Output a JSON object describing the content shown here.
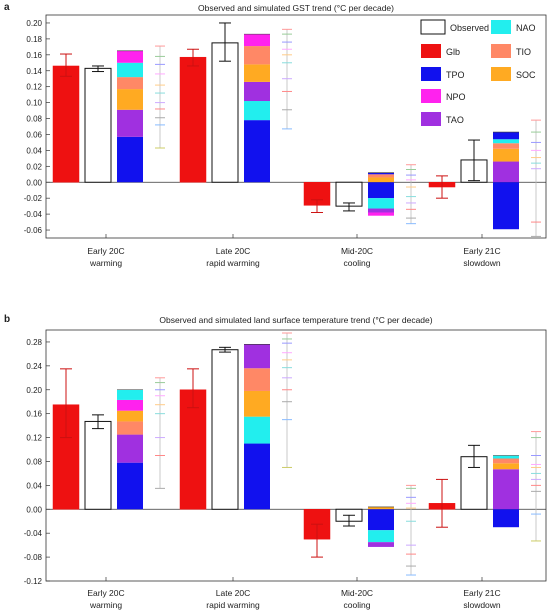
{
  "panels": [
    {
      "label": "a",
      "title": "Observed and simulated GST trend (°C per decade)",
      "chart_data": {
        "type": "bar",
        "categories": [
          [
            "Early 20C",
            "warming"
          ],
          [
            "Late 20C",
            "rapid warming"
          ],
          [
            "Mid-20C",
            "cooling"
          ],
          [
            "Early 21C",
            "slowdown"
          ]
        ],
        "ylim": [
          -0.07,
          0.21
        ],
        "yticks": [
          -0.06,
          -0.04,
          -0.02,
          0.0,
          0.02,
          0.04,
          0.06,
          0.08,
          0.1,
          0.12,
          0.14,
          0.16,
          0.18,
          0.2
        ],
        "glb": {
          "values": [
            0.146,
            0.157,
            -0.029,
            -0.006
          ],
          "err_low": [
            0.133,
            0.146,
            -0.038,
            -0.02
          ],
          "err_high": [
            0.161,
            0.167,
            -0.022,
            0.008
          ]
        },
        "observed": {
          "values": [
            0.143,
            0.175,
            -0.03,
            0.028
          ],
          "err_low": [
            0.139,
            0.152,
            -0.036,
            0.002
          ],
          "err_high": [
            0.146,
            0.2,
            -0.026,
            0.053
          ]
        },
        "stacks": [
          {
            "positive": [
              [
                "TPO",
                0.057
              ],
              [
                "TAO",
                0.034
              ],
              [
                "SOC",
                0.026
              ],
              [
                "TIO",
                0.015
              ],
              [
                "NAO",
                0.018
              ],
              [
                "NPO",
                0.015
              ]
            ],
            "negative": []
          },
          {
            "positive": [
              [
                "TPO",
                0.078
              ],
              [
                "NAO",
                0.024
              ],
              [
                "TAO",
                0.024
              ],
              [
                "SOC",
                0.022
              ],
              [
                "TIO",
                0.023
              ],
              [
                "NPO",
                0.015
              ]
            ],
            "negative": []
          },
          {
            "positive": [
              [
                "SOC",
                0.006
              ],
              [
                "TIO",
                0.004
              ],
              [
                "TPO",
                0.002
              ]
            ],
            "negative": [
              [
                "TPO",
                -0.02
              ],
              [
                "NAO",
                -0.013
              ],
              [
                "TAO",
                -0.005
              ],
              [
                "NPO",
                -0.004
              ]
            ]
          },
          {
            "positive": [
              [
                "TAO",
                0.026
              ],
              [
                "SOC",
                0.016
              ],
              [
                "TIO",
                0.007
              ],
              [
                "NAO",
                0.005
              ],
              [
                "TPO",
                0.009
              ]
            ],
            "negative": [
              [
                "TPO",
                -0.059
              ]
            ]
          }
        ],
        "spread": [
          {
            "low": 0.043,
            "high": 0.171,
            "ticks": [
              0.171,
              0.158,
              0.148,
              0.136,
              0.122,
              0.112,
              0.1,
              0.092,
              0.081,
              0.072,
              0.043
            ]
          },
          {
            "low": 0.067,
            "high": 0.192,
            "ticks": [
              0.192,
              0.186,
              0.176,
              0.167,
              0.16,
              0.15,
              0.13,
              0.114,
              0.091,
              0.067
            ]
          },
          {
            "low": -0.052,
            "high": 0.022,
            "ticks": [
              0.022,
              0.016,
              0.009,
              0.003,
              -0.006,
              -0.018,
              -0.026,
              -0.034,
              -0.045,
              -0.052
            ]
          },
          {
            "low": -0.068,
            "high": 0.078,
            "ticks": [
              0.078,
              0.063,
              0.05,
              0.04,
              0.031,
              0.024,
              0.017,
              -0.05,
              -0.068
            ]
          }
        ]
      }
    },
    {
      "label": "b",
      "title": "Observed and simulated land surface temperature trend (°C per decade)",
      "chart_data": {
        "type": "bar",
        "categories": [
          [
            "Early 20C",
            "warming"
          ],
          [
            "Late 20C",
            "rapid warming"
          ],
          [
            "Mid-20C",
            "cooling"
          ],
          [
            "Early 21C",
            "slowdown"
          ]
        ],
        "ylim": [
          -0.12,
          0.3
        ],
        "yticks": [
          -0.12,
          -0.08,
          -0.04,
          0.0,
          0.04,
          0.08,
          0.12,
          0.16,
          0.2,
          0.24,
          0.28
        ],
        "glb": {
          "values": [
            0.175,
            0.2,
            -0.05,
            0.01
          ],
          "err_low": [
            0.12,
            0.17,
            -0.08,
            -0.03
          ],
          "err_high": [
            0.235,
            0.235,
            -0.025,
            0.05
          ]
        },
        "observed": {
          "values": [
            0.147,
            0.267,
            -0.02,
            0.088
          ],
          "err_low": [
            0.135,
            0.263,
            -0.028,
            0.07
          ],
          "err_high": [
            0.158,
            0.271,
            -0.01,
            0.107
          ]
        },
        "stacks": [
          {
            "positive": [
              [
                "TPO",
                0.078
              ],
              [
                "TAO",
                0.047
              ],
              [
                "TIO",
                0.022
              ],
              [
                "SOC",
                0.018
              ],
              [
                "NPO",
                0.018
              ],
              [
                "NAO",
                0.017
              ]
            ],
            "negative": []
          },
          {
            "positive": [
              [
                "TPO",
                0.11
              ],
              [
                "NAO",
                0.045
              ],
              [
                "SOC",
                0.043
              ],
              [
                "TIO",
                0.038
              ],
              [
                "TAO",
                0.04
              ]
            ],
            "negative": []
          },
          {
            "positive": [
              [
                "SOC",
                0.004
              ]
            ],
            "negative": [
              [
                "TPO",
                -0.035
              ],
              [
                "NAO",
                -0.02
              ],
              [
                "TAO",
                -0.008
              ]
            ]
          },
          {
            "positive": [
              [
                "TAO",
                0.067
              ],
              [
                "SOC",
                0.01
              ],
              [
                "TIO",
                0.008
              ],
              [
                "NAO",
                0.005
              ]
            ],
            "negative": [
              [
                "TPO",
                -0.03
              ]
            ]
          }
        ],
        "spread": [
          {
            "low": 0.035,
            "high": 0.22,
            "ticks": [
              0.22,
              0.212,
              0.2,
              0.19,
              0.175,
              0.16,
              0.12,
              0.09,
              0.035
            ]
          },
          {
            "low": 0.07,
            "high": 0.295,
            "ticks": [
              0.295,
              0.285,
              0.278,
              0.262,
              0.25,
              0.237,
              0.22,
              0.2,
              0.18,
              0.15,
              0.07
            ]
          },
          {
            "low": -0.11,
            "high": 0.04,
            "ticks": [
              0.04,
              0.035,
              0.02,
              0.01,
              0.002,
              -0.02,
              -0.06,
              -0.075,
              -0.095,
              -0.11
            ]
          },
          {
            "low": -0.053,
            "high": 0.13,
            "ticks": [
              0.13,
              0.12,
              0.09,
              0.075,
              0.07,
              0.06,
              0.05,
              0.04,
              0.03,
              -0.008,
              -0.053
            ]
          }
        ]
      }
    }
  ],
  "legend": [
    {
      "key": "Observed",
      "label": "Observed",
      "color": "#ffffff"
    },
    {
      "key": "Glb",
      "label": "Glb",
      "color": "#ee1111"
    },
    {
      "key": "TPO",
      "label": "TPO",
      "color": "#1111ee"
    },
    {
      "key": "NPO",
      "label": "NPO",
      "color": "#ff22ee"
    },
    {
      "key": "TAO",
      "label": "TAO",
      "color": "#a030e0"
    },
    {
      "key": "NAO",
      "label": "NAO",
      "color": "#22eeee"
    },
    {
      "key": "TIO",
      "label": "TIO",
      "color": "#ff8866"
    },
    {
      "key": "SOC",
      "label": "SOC",
      "color": "#ffaa22"
    }
  ]
}
